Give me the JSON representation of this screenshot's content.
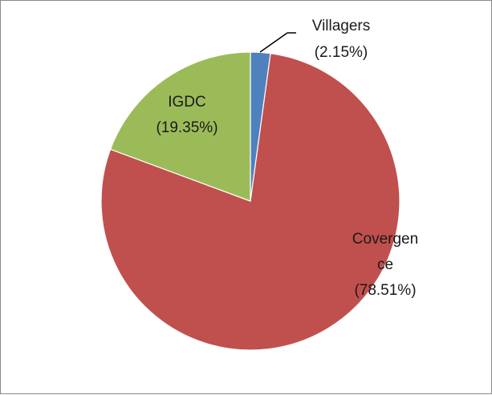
{
  "chart_data": {
    "type": "pie",
    "title": "",
    "legend": "none",
    "slices": [
      {
        "name": "Villagers",
        "value": 2.15,
        "percent_label": "(2.15%)",
        "label_lines": [
          "Villagers",
          "(2.15%)"
        ],
        "color": "#4F81BD"
      },
      {
        "name": "Covergence",
        "value": 78.51,
        "percent_label": "(78.51%)",
        "label_lines": [
          "Covergen",
          "ce",
          "(78.51%)"
        ],
        "color": "#C0504D"
      },
      {
        "name": "IGDC",
        "value": 19.35,
        "percent_label": "(19.35%)",
        "label_lines": [
          "IGDC",
          "(19.35%)"
        ],
        "color": "#9BBB59"
      }
    ]
  }
}
